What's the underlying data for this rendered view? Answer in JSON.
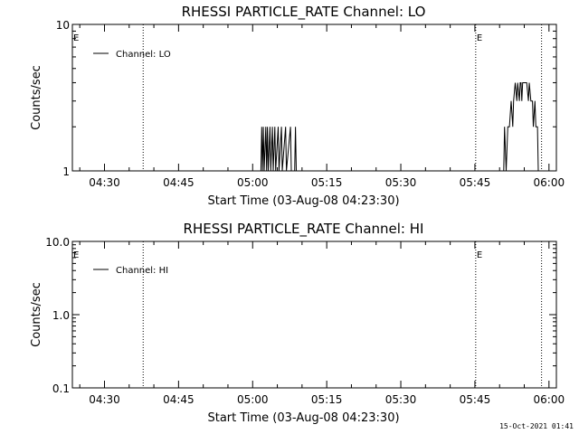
{
  "footer_timestamp": "15-Oct-2021 01:41",
  "chart_data": [
    {
      "type": "line",
      "title": "RHESSI PARTICLE_RATE Channel: LO",
      "xlabel": "Start Time (03-Aug-08 04:23:30)",
      "ylabel": "Counts/sec",
      "y_scale": "log",
      "ylim": [
        1,
        10
      ],
      "yticks": [
        "10",
        "1"
      ],
      "xlim": [
        "04:23:30",
        "06:01:30"
      ],
      "xticks": [
        "04:30",
        "04:45",
        "05:00",
        "05:15",
        "05:30",
        "05:45",
        "06:00"
      ],
      "legend": {
        "placement": "top-left",
        "entries": [
          "Channel: LO"
        ]
      },
      "event_marker_label": "E",
      "event_lines": [
        "04:37:50",
        "05:45:10",
        "05:58:30"
      ],
      "event_labels_at": [
        "04:23:30",
        "05:45:10"
      ],
      "series": [
        {
          "name": "Channel: LO",
          "points": [
            [
              "04:23:30",
              1
            ],
            [
              "05:01:40",
              1
            ],
            [
              "05:01:50",
              2
            ],
            [
              "05:02:00",
              1
            ],
            [
              "05:02:10",
              2
            ],
            [
              "05:02:20",
              1
            ],
            [
              "05:02:40",
              2
            ],
            [
              "05:02:50",
              1
            ],
            [
              "05:03:00",
              2
            ],
            [
              "05:03:10",
              1
            ],
            [
              "05:03:30",
              2
            ],
            [
              "05:03:40",
              1
            ],
            [
              "05:04:00",
              2
            ],
            [
              "05:04:10",
              1
            ],
            [
              "05:04:30",
              2
            ],
            [
              "05:04:40",
              1
            ],
            [
              "05:05:10",
              2
            ],
            [
              "05:05:20",
              1
            ],
            [
              "05:05:50",
              2
            ],
            [
              "05:06:00",
              1
            ],
            [
              "05:06:40",
              2
            ],
            [
              "05:06:50",
              1
            ],
            [
              "05:07:40",
              2
            ],
            [
              "05:07:50",
              1
            ],
            [
              "05:08:30",
              1
            ],
            [
              "05:08:40",
              2
            ],
            [
              "05:08:50",
              1
            ],
            [
              "05:50:50",
              1
            ],
            [
              "05:51:00",
              2
            ],
            [
              "05:51:20",
              1
            ],
            [
              "05:51:40",
              2
            ],
            [
              "05:52:00",
              2
            ],
            [
              "05:52:20",
              3
            ],
            [
              "05:52:40",
              2
            ],
            [
              "05:52:50",
              3
            ],
            [
              "05:53:10",
              4
            ],
            [
              "05:53:30",
              3
            ],
            [
              "05:53:40",
              4
            ],
            [
              "05:54:00",
              3
            ],
            [
              "05:54:10",
              4
            ],
            [
              "05:54:20",
              4
            ],
            [
              "05:54:30",
              3
            ],
            [
              "05:54:40",
              4
            ],
            [
              "05:55:00",
              4
            ],
            [
              "05:55:20",
              4
            ],
            [
              "05:55:30",
              4
            ],
            [
              "05:55:50",
              3
            ],
            [
              "05:56:00",
              4
            ],
            [
              "05:56:20",
              3
            ],
            [
              "05:56:40",
              3
            ],
            [
              "05:56:50",
              2
            ],
            [
              "05:57:10",
              3
            ],
            [
              "05:57:20",
              2
            ],
            [
              "05:57:40",
              2
            ],
            [
              "05:57:50",
              1
            ],
            [
              "06:01:30",
              1
            ]
          ]
        }
      ]
    },
    {
      "type": "line",
      "title": "RHESSI PARTICLE_RATE Channel: HI",
      "xlabel": "Start Time (03-Aug-08 04:23:30)",
      "ylabel": "Counts/sec",
      "y_scale": "log",
      "ylim": [
        0.1,
        10
      ],
      "yticks": [
        "10.0",
        "1.0",
        "0.1"
      ],
      "xlim": [
        "04:23:30",
        "06:01:30"
      ],
      "xticks": [
        "04:30",
        "04:45",
        "05:00",
        "05:15",
        "05:30",
        "05:45",
        "06:00"
      ],
      "legend": {
        "placement": "top-left",
        "entries": [
          "Channel: HI"
        ]
      },
      "event_marker_label": "E",
      "event_lines": [
        "04:37:50",
        "05:45:10",
        "05:58:30"
      ],
      "event_labels_at": [
        "04:23:30",
        "05:45:10"
      ],
      "series": [
        {
          "name": "Channel: HI",
          "points": []
        }
      ]
    }
  ]
}
